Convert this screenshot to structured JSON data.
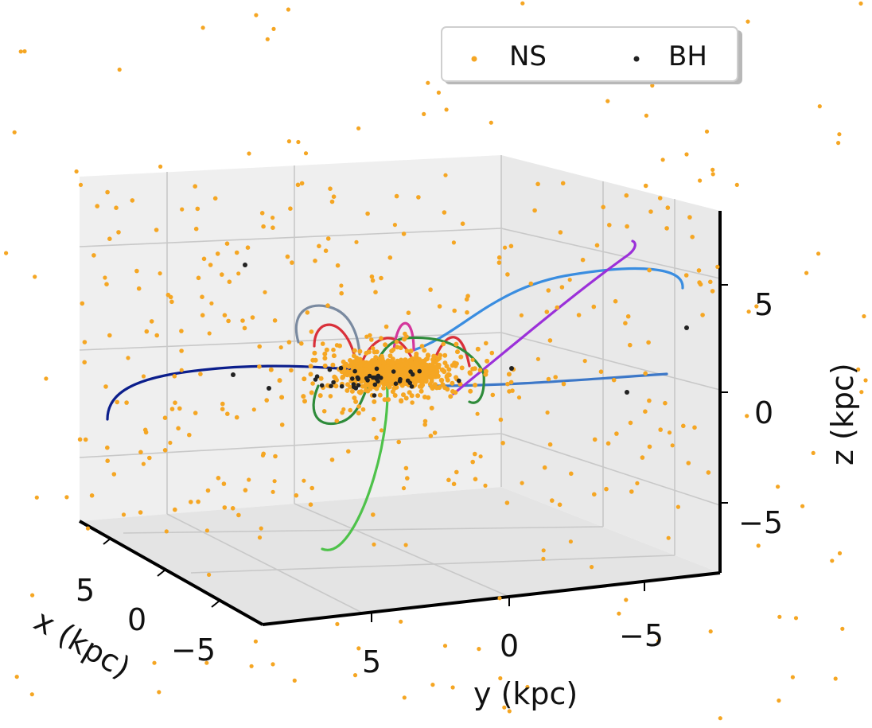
{
  "chart_data": {
    "type": "scatter",
    "projection": "3d",
    "title": "",
    "legend": {
      "placement": "top-right",
      "entries": [
        "NS",
        "BH"
      ]
    },
    "axes": {
      "x": {
        "label": "x (kpc)",
        "ticks": [
          "5",
          "0",
          "−5"
        ],
        "range": [
          -8,
          8
        ]
      },
      "y": {
        "label": "y (kpc)",
        "ticks": [
          "5",
          "0",
          "−5"
        ],
        "range": [
          -8,
          8
        ]
      },
      "z": {
        "label": "z (kpc)",
        "ticks": [
          "5",
          "0",
          "−5"
        ],
        "range": [
          -8,
          8
        ]
      }
    },
    "grid": true,
    "colors": {
      "NS": "#f5a623",
      "BH": "#222222",
      "panes": "#efefef",
      "gridline": "#c8c8c8"
    },
    "series": [
      {
        "name": "NS",
        "kind": "scatter",
        "marker": "dot",
        "description": "neutron stars, concentrated in disc near origin with halo of scattered points"
      },
      {
        "name": "BH",
        "kind": "scatter",
        "marker": "dot",
        "description": "black holes, mostly near disc"
      }
    ],
    "orbits": [
      {
        "color": "#0b1e8c"
      },
      {
        "color": "#3a8de0"
      },
      {
        "color": "#3d78c8"
      },
      {
        "color": "#9b30d9"
      },
      {
        "color": "#d9303a"
      },
      {
        "color": "#d4379c"
      },
      {
        "color": "#2e8b3a"
      },
      {
        "color": "#4ec24a"
      },
      {
        "color": "#7a8aa0"
      }
    ]
  }
}
